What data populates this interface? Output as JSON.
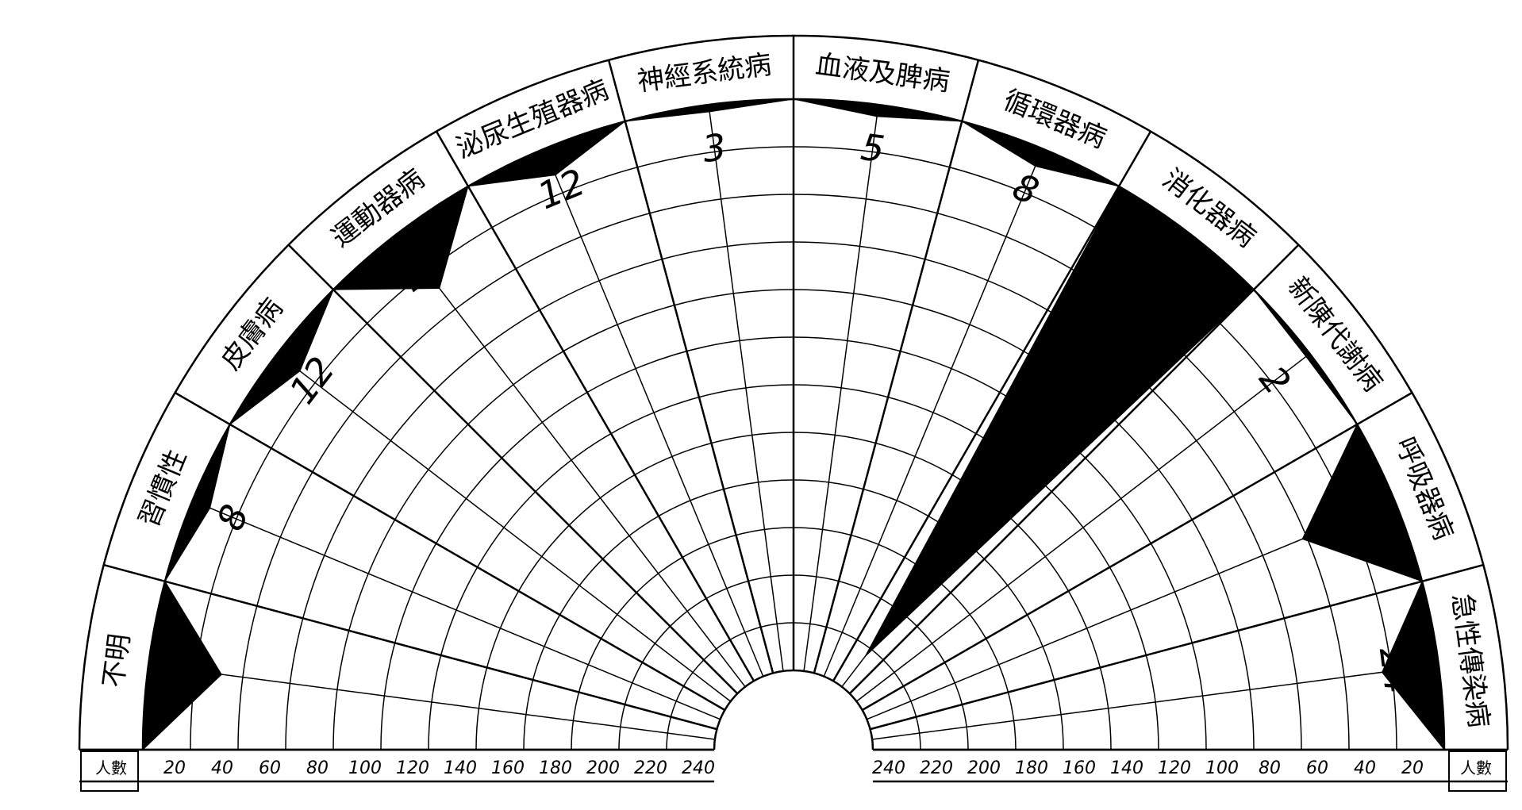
{
  "chart_data": {
    "type": "radial-bar",
    "unit_label": "人數",
    "rmax": 240,
    "ring_step": 20,
    "categories": [
      "不明",
      "習慣性",
      "皮膚病",
      "運動器病",
      "泌尿生殖器病",
      "神經系統病",
      "血液及脾病",
      "循環器病",
      "消化器病",
      "新陳代謝病",
      "呼吸器病",
      "急性傳染病"
    ],
    "values": [
      31,
      8,
      12,
      29,
      12,
      3,
      5,
      8,
      224,
      2,
      42,
      24
    ],
    "value_labels": [
      "31",
      "8",
      "12",
      "29",
      "12",
      "3",
      "5",
      "8",
      "224",
      "2",
      "42",
      "24"
    ],
    "ticks_left": [
      "20",
      "40",
      "60",
      "80",
      "100",
      "120",
      "140",
      "160",
      "180",
      "200",
      "220",
      "240"
    ],
    "ticks_right": [
      "240",
      "220",
      "200",
      "180",
      "160",
      "140",
      "120",
      "100",
      "80",
      "60",
      "40",
      "20"
    ],
    "fill_color": "#000000",
    "line_color": "#000000",
    "background": "#ffffff"
  }
}
